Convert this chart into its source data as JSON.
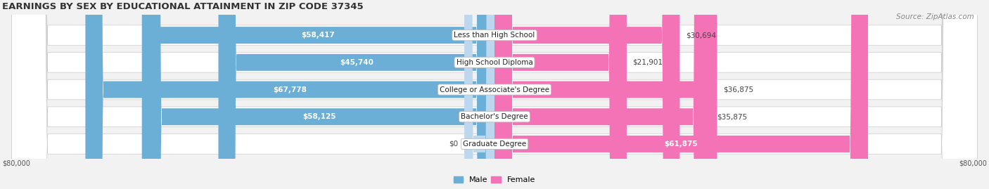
{
  "title": "EARNINGS BY SEX BY EDUCATIONAL ATTAINMENT IN ZIP CODE 37345",
  "source": "Source: ZipAtlas.com",
  "categories": [
    "Less than High School",
    "High School Diploma",
    "College or Associate's Degree",
    "Bachelor's Degree",
    "Graduate Degree"
  ],
  "male_values": [
    58417,
    45740,
    67778,
    58125,
    0
  ],
  "female_values": [
    30694,
    21901,
    36875,
    35875,
    61875
  ],
  "male_labels": [
    "$58,417",
    "$45,740",
    "$67,778",
    "$58,125",
    "$0"
  ],
  "female_labels": [
    "$30,694",
    "$21,901",
    "$36,875",
    "$35,875",
    "$61,875"
  ],
  "male_color": "#6baed6",
  "female_color": "#f472b6",
  "male_light_color": "#bdd7ee",
  "female_grad_color": "#f472b6",
  "axis_max": 80000,
  "xlabel_left": "$80,000",
  "xlabel_right": "$80,000",
  "legend_male": "Male",
  "legend_female": "Female",
  "bg_color": "#f2f2f2",
  "row_bg_color": "#e8e8e8",
  "title_fontsize": 9.5,
  "source_fontsize": 7.5,
  "label_fontsize": 7.5,
  "category_fontsize": 7.5
}
